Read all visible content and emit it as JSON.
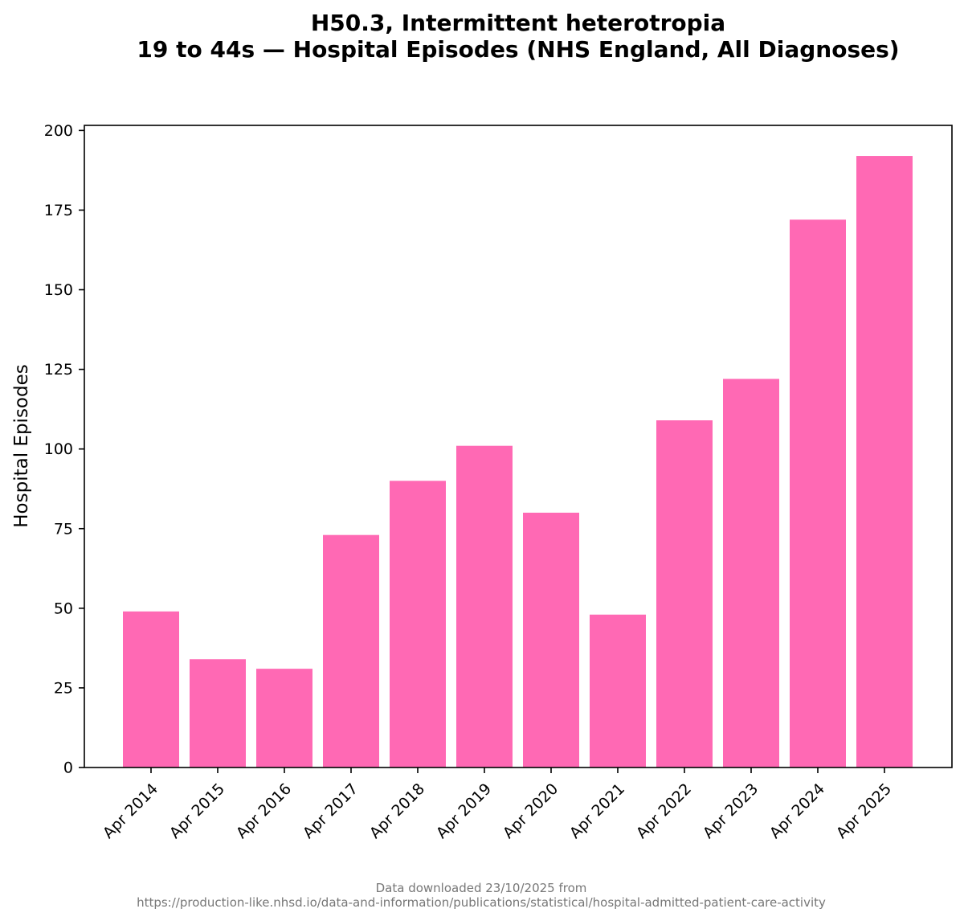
{
  "title": {
    "line1": "H50.3, Intermittent heterotropia",
    "line2": "19 to 44s — Hospital Episodes (NHS England, All Diagnoses)"
  },
  "footer": {
    "line1": "Data downloaded 23/10/2025 from",
    "line2": "https://production-like.nhsd.io/data-and-information/publications/statistical/hospital-admitted-patient-care-activity"
  },
  "colors": {
    "bar": "#ff69b4",
    "axis": "#000000",
    "text": "#000000"
  },
  "chart_data": {
    "type": "bar",
    "title": "H50.3, Intermittent heterotropia\n19 to 44s — Hospital Episodes (NHS England, All Diagnoses)",
    "xlabel": "",
    "ylabel": "Hospital Episodes",
    "categories": [
      "Apr 2014",
      "Apr 2015",
      "Apr 2016",
      "Apr 2017",
      "Apr 2018",
      "Apr 2019",
      "Apr 2020",
      "Apr 2021",
      "Apr 2022",
      "Apr 2023",
      "Apr 2024",
      "Apr 2025"
    ],
    "values": [
      49,
      34,
      31,
      73,
      90,
      101,
      80,
      48,
      109,
      122,
      172,
      192
    ],
    "ylim": [
      0,
      201.6
    ],
    "yticks": [
      0,
      25,
      50,
      75,
      100,
      125,
      150,
      175,
      200
    ],
    "grid": false,
    "legend": "none"
  }
}
